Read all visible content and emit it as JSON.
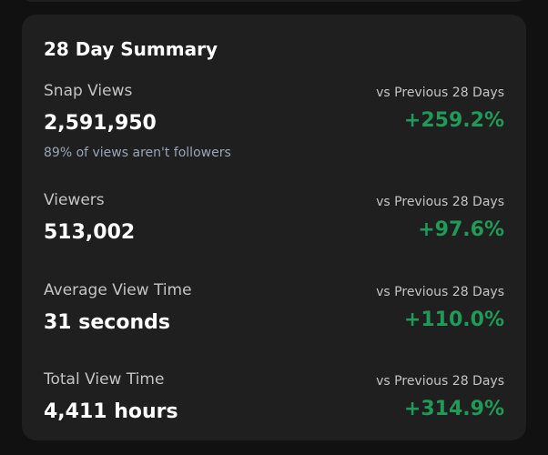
{
  "summary": {
    "title": "28 Day Summary",
    "positive_color": "#1f9a57",
    "metrics": [
      {
        "label": "Snap Views",
        "value": "2,591,950",
        "note": "89% of views aren't followers",
        "comparison_label": "vs Previous 28 Days",
        "change": "+259.2%"
      },
      {
        "label": "Viewers",
        "value": "513,002",
        "comparison_label": "vs Previous 28 Days",
        "change": "+97.6%"
      },
      {
        "label": "Average View Time",
        "value": "31 seconds",
        "comparison_label": "vs Previous 28 Days",
        "change": "+110.0%"
      },
      {
        "label": "Total View Time",
        "value": "4,411 hours",
        "comparison_label": "vs Previous 28 Days",
        "change": "+314.9%"
      }
    ]
  }
}
